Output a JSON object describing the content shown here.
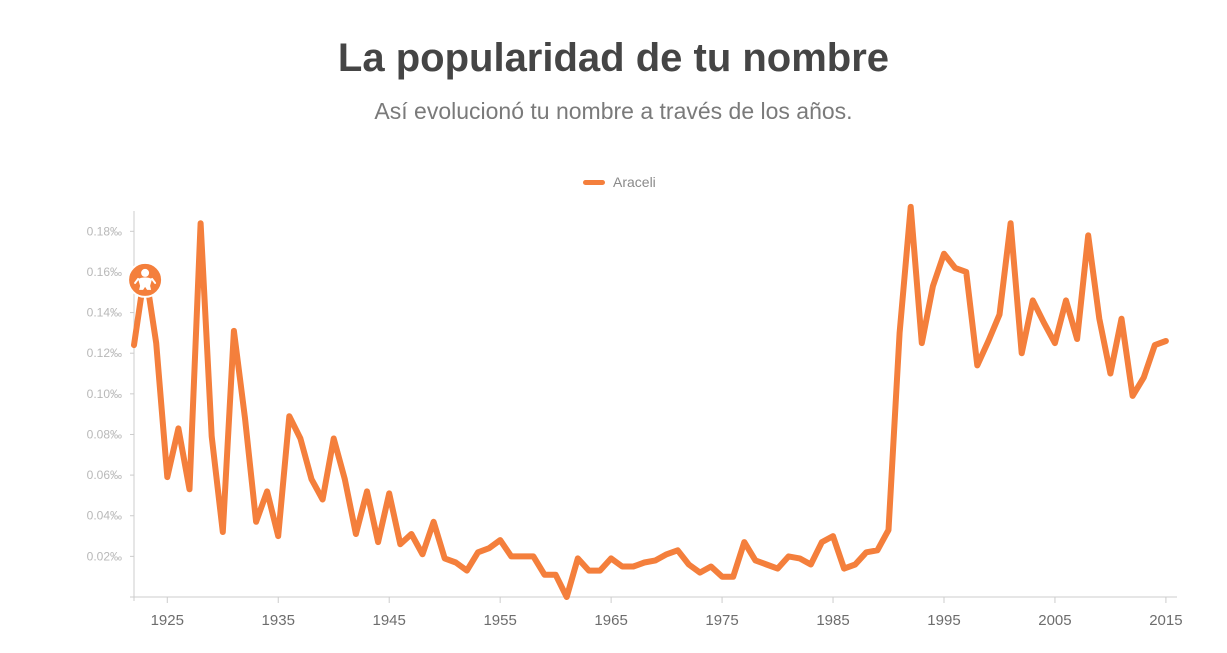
{
  "header": {
    "title": "La popularidad de tu nombre",
    "subtitle": "Así evolucionó tu nombre a través de los años."
  },
  "legend": {
    "label": "Araceli"
  },
  "colors": {
    "series": "#f47f3c",
    "axis": "#cccccc",
    "tick_label_y": "#b8b8b8",
    "tick_label_x": "#6d6d6d"
  },
  "marker": {
    "icon": "baby-icon",
    "year": 1923
  },
  "chart_data": {
    "type": "line",
    "title": "La popularidad de tu nombre",
    "subtitle": "Así evolucionó tu nombre a través de los años.",
    "xlabel": "",
    "ylabel": "",
    "xlim": [
      1922,
      2016
    ],
    "ylim": [
      0,
      0.19
    ],
    "y_unit": "‰",
    "x_ticks": [
      1925,
      1935,
      1945,
      1955,
      1965,
      1975,
      1985,
      1995,
      2005,
      2015
    ],
    "y_ticks": [
      "0.02‰",
      "0.04‰",
      "0.06‰",
      "0.08‰",
      "0.10‰",
      "0.12‰",
      "0.14‰",
      "0.16‰",
      "0.18‰"
    ],
    "y_tick_values": [
      0.02,
      0.04,
      0.06,
      0.08,
      0.1,
      0.12,
      0.14,
      0.16,
      0.18
    ],
    "grid": false,
    "legend_position": "top-center",
    "series": [
      {
        "name": "Araceli",
        "x": [
          1922,
          1923,
          1924,
          1925,
          1926,
          1927,
          1928,
          1929,
          1930,
          1931,
          1932,
          1933,
          1934,
          1935,
          1936,
          1937,
          1938,
          1939,
          1940,
          1941,
          1942,
          1943,
          1944,
          1945,
          1946,
          1947,
          1948,
          1949,
          1950,
          1951,
          1952,
          1953,
          1954,
          1955,
          1956,
          1957,
          1958,
          1959,
          1960,
          1961,
          1962,
          1963,
          1964,
          1965,
          1966,
          1967,
          1968,
          1969,
          1970,
          1971,
          1972,
          1973,
          1974,
          1975,
          1976,
          1977,
          1978,
          1979,
          1980,
          1981,
          1982,
          1983,
          1984,
          1985,
          1986,
          1987,
          1988,
          1989,
          1990,
          1991,
          1992,
          1993,
          1994,
          1995,
          1996,
          1997,
          1998,
          1999,
          2000,
          2001,
          2002,
          2003,
          2004,
          2005,
          2006,
          2007,
          2008,
          2009,
          2010,
          2011,
          2012,
          2013,
          2014,
          2015
        ],
        "values": [
          0.124,
          0.161,
          0.125,
          0.059,
          0.083,
          0.053,
          0.184,
          0.079,
          0.032,
          0.131,
          0.088,
          0.037,
          0.052,
          0.03,
          0.089,
          0.078,
          0.058,
          0.048,
          0.078,
          0.058,
          0.031,
          0.052,
          0.027,
          0.051,
          0.026,
          0.031,
          0.021,
          0.037,
          0.019,
          0.017,
          0.013,
          0.022,
          0.024,
          0.028,
          0.02,
          0.02,
          0.02,
          0.011,
          0.011,
          0.0,
          0.019,
          0.013,
          0.013,
          0.019,
          0.015,
          0.015,
          0.017,
          0.018,
          0.021,
          0.023,
          0.016,
          0.012,
          0.015,
          0.01,
          0.01,
          0.027,
          0.018,
          0.016,
          0.014,
          0.02,
          0.019,
          0.016,
          0.027,
          0.03,
          0.014,
          0.016,
          0.022,
          0.023,
          0.033,
          0.13,
          0.192,
          0.125,
          0.153,
          0.169,
          0.162,
          0.16,
          0.114,
          0.126,
          0.139,
          0.184,
          0.12,
          0.146,
          0.135,
          0.125,
          0.146,
          0.127,
          0.178,
          0.137,
          0.11,
          0.137,
          0.099,
          0.108,
          0.124,
          0.126
        ]
      }
    ]
  }
}
